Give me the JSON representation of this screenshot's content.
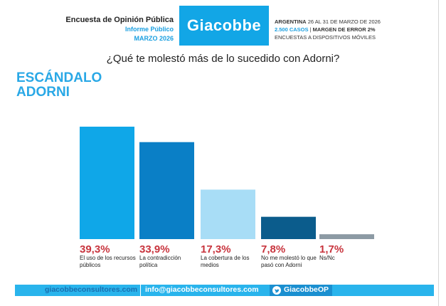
{
  "header": {
    "survey_title": "Encuesta de Opinión Pública",
    "report": "Informe Público",
    "period": "MARZO 2026",
    "brand": "Giacobbe",
    "country": "ARGENTINA",
    "dates": "26 AL 31 DE MARZO DE 2026",
    "cases": "2.500 CASOS",
    "margin": "MARGEN DE ERROR 2%",
    "method": "ENCUESTAS A DISPOSITIVOS MÓVILES"
  },
  "question": "¿Qué te molestó más de lo sucedido con Adorni?",
  "headline": [
    "ESCÁNDALO",
    "ADORNI"
  ],
  "chart_data": {
    "type": "bar",
    "categories": [
      "El uso de los recursos públicos",
      "La contradicción política",
      "La cobertura de los medios",
      "No me molestó lo que pasó con Adorni",
      "Ns/Nc"
    ],
    "values": [
      39.3,
      33.9,
      17.3,
      7.8,
      1.7
    ],
    "value_labels": [
      "39,3%",
      "33,9%",
      "17,3%",
      "7,8%",
      "1,7%"
    ],
    "colors": [
      "#0fa7e8",
      "#0a7fc6",
      "#a8ddf6",
      "#0b5c8c",
      "#8c9aa4"
    ],
    "title": "",
    "xlabel": "",
    "ylabel": "",
    "ylim": [
      0,
      39.3
    ],
    "grid": false,
    "value_label_color": "#c8343d"
  },
  "footer": {
    "website": "giacobbeconsultores.com",
    "email": "info@giacobbeconsultores.com",
    "twitter_handle": "GiacobbeOP",
    "icon": "twitter-bird-icon"
  }
}
